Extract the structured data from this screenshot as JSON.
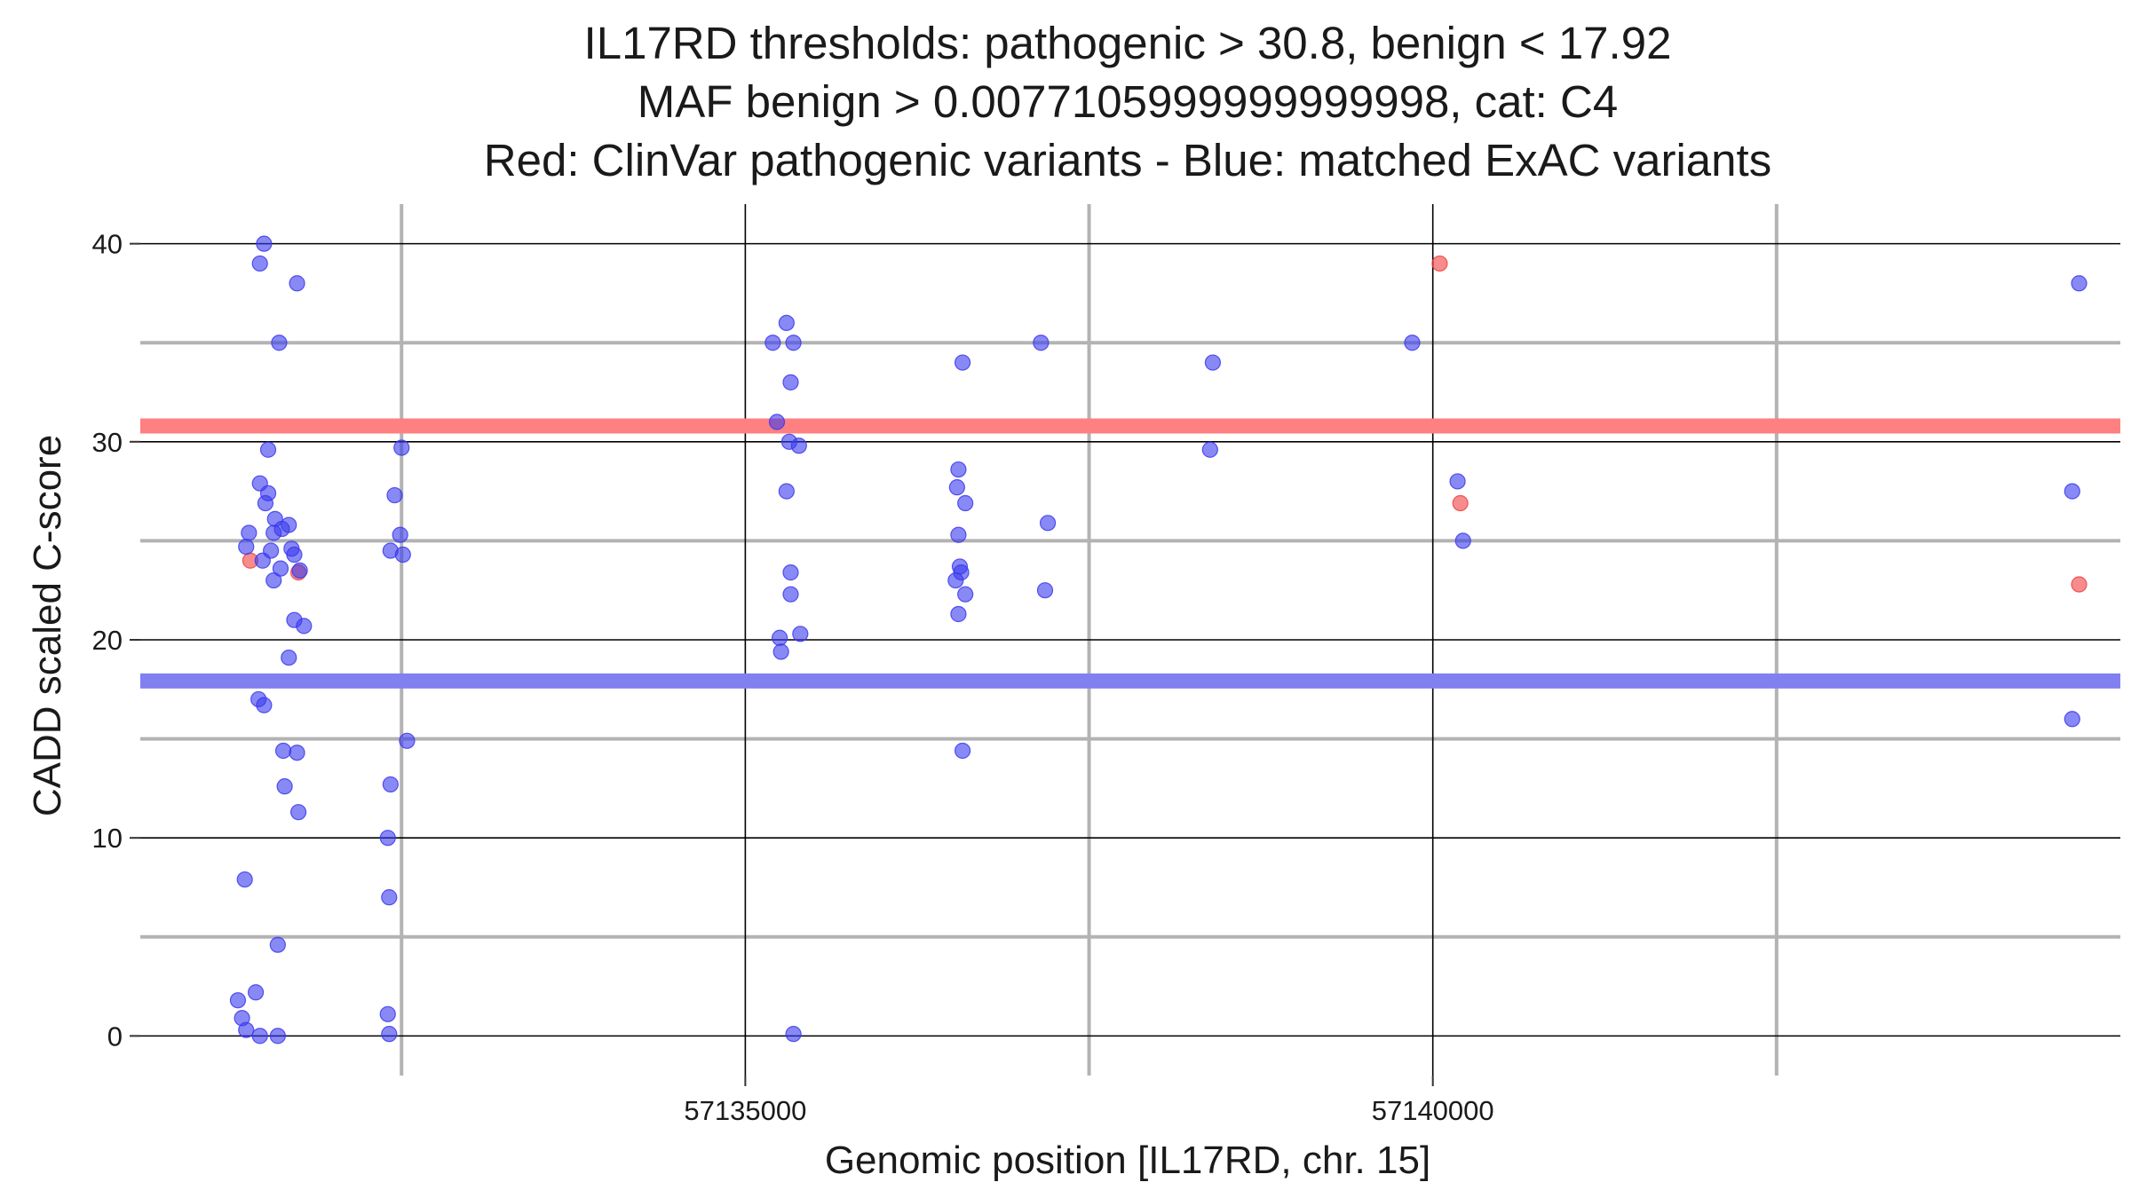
{
  "chart_data": {
    "type": "scatter",
    "title_lines": [
      "IL17RD thresholds: pathogenic > 30.8, benign < 17.92",
      "MAF benign > 0.0077105999999999998, cat: C4",
      "Red: ClinVar pathogenic variants - Blue: matched ExAC variants"
    ],
    "xlabel": "Genomic position [IL17RD, chr. 15]",
    "ylabel": "CADD scaled C-score",
    "xlim": [
      57130600,
      57145000
    ],
    "ylim": [
      -2,
      42
    ],
    "x_ticks": [
      57135000,
      57140000
    ],
    "x_minor_ticks": [
      57132500,
      57137500,
      57142500
    ],
    "y_ticks": [
      0,
      10,
      20,
      30,
      40
    ],
    "y_minor_ticks": [
      5,
      15,
      25,
      35
    ],
    "x_tick_labels": [
      "57135000",
      "57140000"
    ],
    "y_tick_labels": [
      "0",
      "10",
      "20",
      "30",
      "40"
    ],
    "grid": true,
    "thresholds": [
      {
        "value": 30.8,
        "color": "#ff8080"
      },
      {
        "value": 17.92,
        "color": "#8080f0"
      }
    ],
    "colors": {
      "pathogenic": "#f04040",
      "benign": "#3a3aee",
      "point_alpha": 0.6
    },
    "series": [
      {
        "color": "#f04040",
        "points": [
          [
            57131400,
            24.0
          ],
          [
            57131750,
            23.4
          ],
          [
            57140050,
            39.0
          ],
          [
            57140200,
            26.9
          ],
          [
            57144700,
            22.8
          ]
        ]
      },
      {
        "color": "#3a3aee",
        "points": [
          [
            57131500,
            40.0
          ],
          [
            57131470,
            39.0
          ],
          [
            57131740,
            38.0
          ],
          [
            57131610,
            35.0
          ],
          [
            57131530,
            29.6
          ],
          [
            57132500,
            29.7
          ],
          [
            57131470,
            27.9
          ],
          [
            57131530,
            27.4
          ],
          [
            57131510,
            26.9
          ],
          [
            57132450,
            27.3
          ],
          [
            57131580,
            26.1
          ],
          [
            57131630,
            25.6
          ],
          [
            57131680,
            25.8
          ],
          [
            57131390,
            25.4
          ],
          [
            57131570,
            25.4
          ],
          [
            57132490,
            25.3
          ],
          [
            57131370,
            24.7
          ],
          [
            57131550,
            24.5
          ],
          [
            57131700,
            24.6
          ],
          [
            57132420,
            24.5
          ],
          [
            57131490,
            24.0
          ],
          [
            57131720,
            24.3
          ],
          [
            57132510,
            24.3
          ],
          [
            57131620,
            23.6
          ],
          [
            57131760,
            23.5
          ],
          [
            57131570,
            23.0
          ],
          [
            57131720,
            21.0
          ],
          [
            57131790,
            20.7
          ],
          [
            57131680,
            19.1
          ],
          [
            57131460,
            17.0
          ],
          [
            57131500,
            16.7
          ],
          [
            57132540,
            14.9
          ],
          [
            57131640,
            14.4
          ],
          [
            57131740,
            14.3
          ],
          [
            57132420,
            12.7
          ],
          [
            57131650,
            12.6
          ],
          [
            57131750,
            11.3
          ],
          [
            57132400,
            10.0
          ],
          [
            57131360,
            7.9
          ],
          [
            57132410,
            7.0
          ],
          [
            57131600,
            4.6
          ],
          [
            57131440,
            2.2
          ],
          [
            57131310,
            1.8
          ],
          [
            57131340,
            0.9
          ],
          [
            57132400,
            1.1
          ],
          [
            57131370,
            0.3
          ],
          [
            57131470,
            0.0
          ],
          [
            57131600,
            0.0
          ],
          [
            57132410,
            0.1
          ],
          [
            57135200,
            35.0
          ],
          [
            57135300,
            36.0
          ],
          [
            57135350,
            35.0
          ],
          [
            57135330,
            33.0
          ],
          [
            57135230,
            31.0
          ],
          [
            57135320,
            30.0
          ],
          [
            57135390,
            29.8
          ],
          [
            57135300,
            27.5
          ],
          [
            57135330,
            23.4
          ],
          [
            57135330,
            22.3
          ],
          [
            57135250,
            20.1
          ],
          [
            57135400,
            20.3
          ],
          [
            57135260,
            19.4
          ],
          [
            57135350,
            0.1
          ],
          [
            57136580,
            34.0
          ],
          [
            57137150,
            35.0
          ],
          [
            57138400,
            34.0
          ],
          [
            57139850,
            35.0
          ],
          [
            57138380,
            29.6
          ],
          [
            57136550,
            28.6
          ],
          [
            57136540,
            27.7
          ],
          [
            57136600,
            26.9
          ],
          [
            57137200,
            25.9
          ],
          [
            57136550,
            25.3
          ],
          [
            57136560,
            23.7
          ],
          [
            57136570,
            23.4
          ],
          [
            57136530,
            23.0
          ],
          [
            57136600,
            22.3
          ],
          [
            57137180,
            22.5
          ],
          [
            57136550,
            21.3
          ],
          [
            57136580,
            14.4
          ],
          [
            57140180,
            28.0
          ],
          [
            57140220,
            25.0
          ],
          [
            57144650,
            27.5
          ],
          [
            57144650,
            16.0
          ],
          [
            57144700,
            38.0
          ]
        ]
      }
    ]
  }
}
